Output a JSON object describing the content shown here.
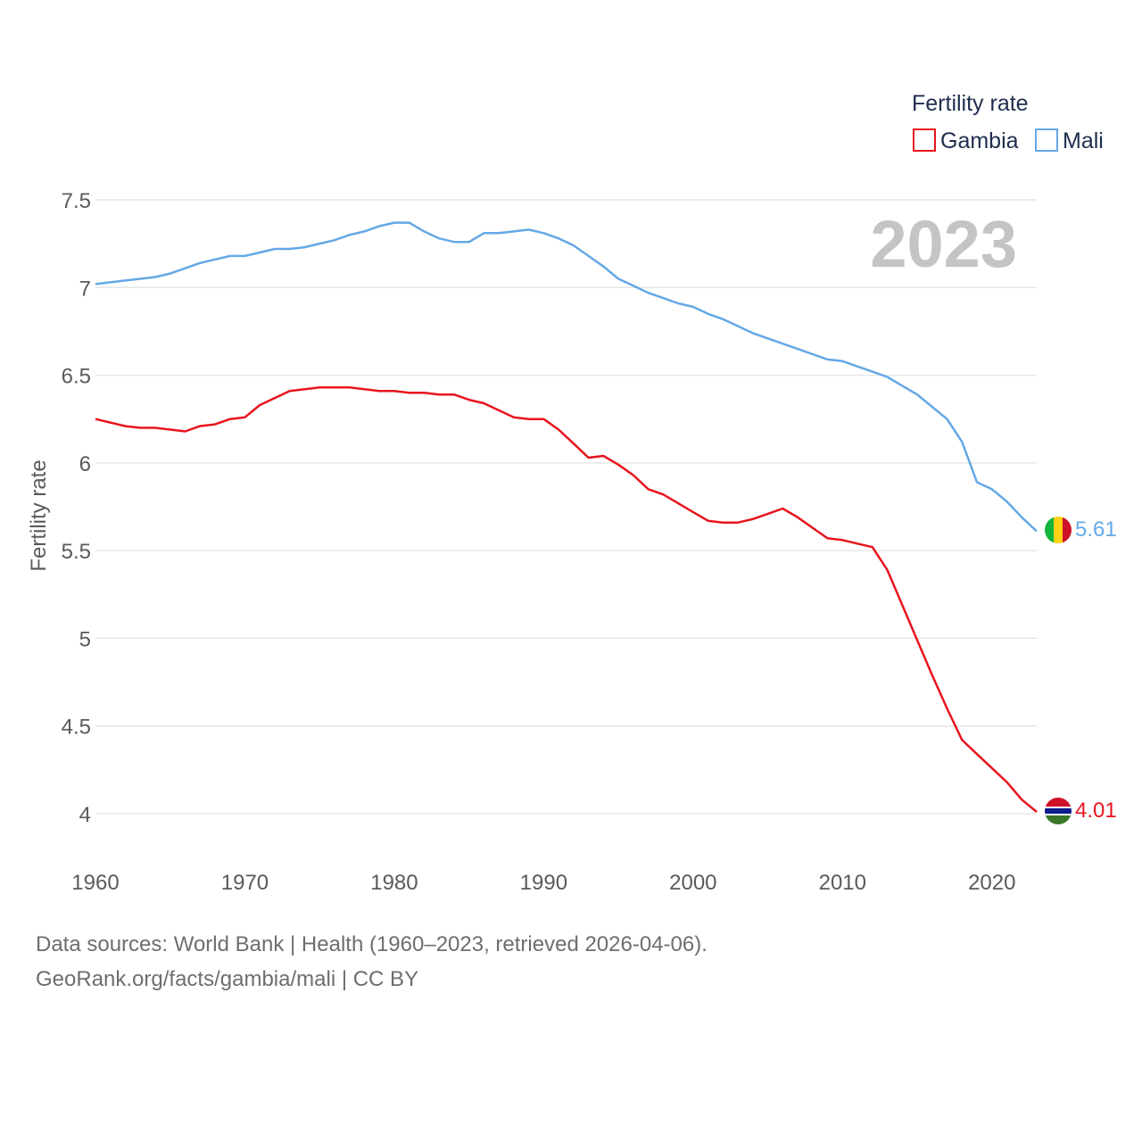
{
  "legend": {
    "title": "Fertility rate",
    "items": [
      {
        "label": "Gambia",
        "color": "#e8141e"
      },
      {
        "label": "Mali",
        "color": "#64a8e6"
      }
    ]
  },
  "year_label": "2023",
  "footer": {
    "line1": "Data sources: World Bank | Health (1960–2023, retrieved 2026-04-06).",
    "line2": "GeoRank.org/facts/gambia/mali | CC BY"
  },
  "chart_data": {
    "type": "line",
    "title": "",
    "xlabel": "",
    "ylabel": "Fertility rate",
    "xlim": [
      1960,
      2023
    ],
    "ylim": [
      4,
      7.5
    ],
    "x_ticks": [
      "1960",
      "1970",
      "1980",
      "1990",
      "2000",
      "2010",
      "2020"
    ],
    "y_ticks": [
      "4",
      "4.5",
      "5",
      "5.5",
      "6",
      "6.5",
      "7",
      "7.5"
    ],
    "grid": true,
    "legend_position": "top-right",
    "x": [
      1960,
      1961,
      1962,
      1963,
      1964,
      1965,
      1966,
      1967,
      1968,
      1969,
      1970,
      1971,
      1972,
      1973,
      1974,
      1975,
      1976,
      1977,
      1978,
      1979,
      1980,
      1981,
      1982,
      1983,
      1984,
      1985,
      1986,
      1987,
      1988,
      1989,
      1990,
      1991,
      1992,
      1993,
      1994,
      1995,
      1996,
      1997,
      1998,
      1999,
      2000,
      2001,
      2002,
      2003,
      2004,
      2005,
      2006,
      2007,
      2008,
      2009,
      2010,
      2011,
      2012,
      2013,
      2014,
      2015,
      2016,
      2017,
      2018,
      2019,
      2020,
      2021,
      2022,
      2023
    ],
    "series": [
      {
        "name": "Gambia",
        "color": "#e8141e",
        "end_label": "4.01",
        "values": [
          6.25,
          6.23,
          6.21,
          6.2,
          6.2,
          6.19,
          6.18,
          6.21,
          6.22,
          6.25,
          6.26,
          6.33,
          6.37,
          6.41,
          6.42,
          6.43,
          6.43,
          6.43,
          6.42,
          6.41,
          6.41,
          6.4,
          6.4,
          6.39,
          6.39,
          6.36,
          6.34,
          6.3,
          6.26,
          6.25,
          6.25,
          6.19,
          6.11,
          6.03,
          6.04,
          5.99,
          5.93,
          5.85,
          5.82,
          5.77,
          5.72,
          5.67,
          5.66,
          5.66,
          5.68,
          5.71,
          5.74,
          5.69,
          5.63,
          5.57,
          5.56,
          5.54,
          5.52,
          5.39,
          5.19,
          4.99,
          4.79,
          4.6,
          4.42,
          4.34,
          4.26,
          4.18,
          4.08,
          4.01
        ]
      },
      {
        "name": "Mali",
        "color": "#64a8e6",
        "end_label": "5.61",
        "values": [
          7.02,
          7.03,
          7.04,
          7.05,
          7.06,
          7.08,
          7.11,
          7.14,
          7.16,
          7.18,
          7.18,
          7.2,
          7.22,
          7.22,
          7.23,
          7.25,
          7.27,
          7.3,
          7.32,
          7.35,
          7.37,
          7.37,
          7.32,
          7.28,
          7.26,
          7.26,
          7.31,
          7.31,
          7.32,
          7.33,
          7.31,
          7.28,
          7.24,
          7.18,
          7.12,
          7.05,
          7.01,
          6.97,
          6.94,
          6.91,
          6.89,
          6.85,
          6.82,
          6.78,
          6.74,
          6.71,
          6.68,
          6.65,
          6.62,
          6.59,
          6.58,
          6.55,
          6.52,
          6.49,
          6.44,
          6.39,
          6.32,
          6.25,
          6.12,
          5.89,
          5.85,
          5.78,
          5.69,
          5.61
        ]
      }
    ]
  }
}
